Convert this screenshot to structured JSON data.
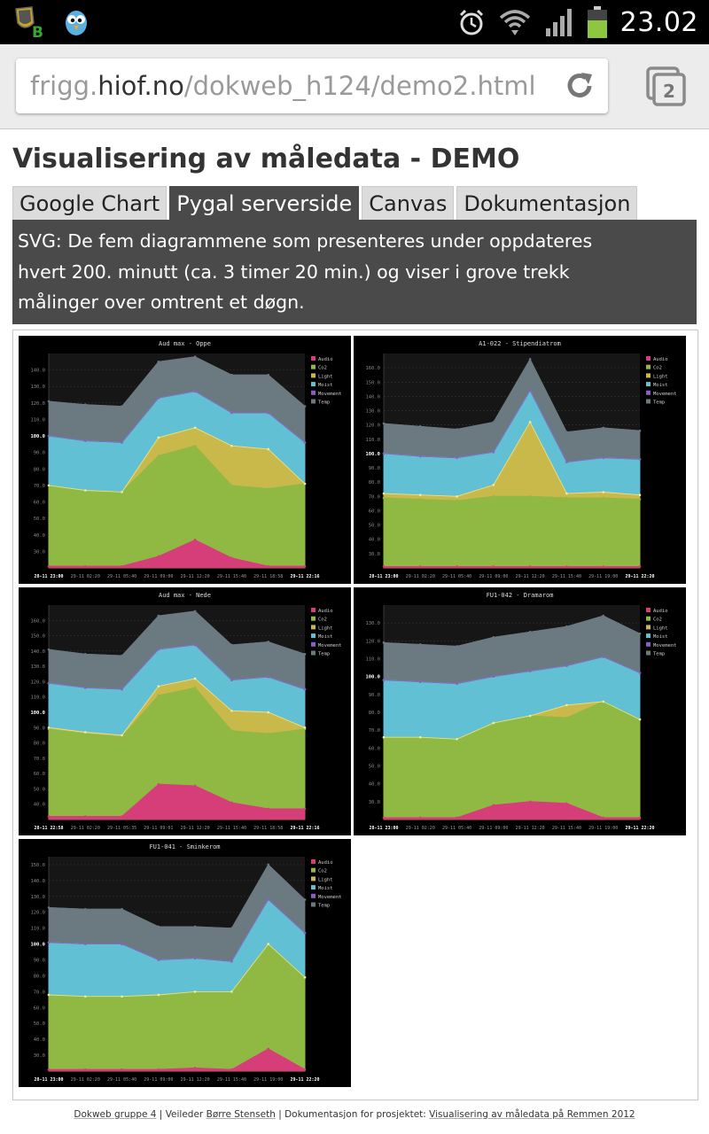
{
  "status_bar": {
    "time": "23.02",
    "icons": [
      "vb-app-icon",
      "bird-app-icon",
      "alarm-icon",
      "wifi-icon",
      "signal-icon",
      "battery-icon"
    ],
    "battery_color": "#8dc63f"
  },
  "browser": {
    "url_prefix": "frigg.",
    "url_host": "hiof.no",
    "url_path": "/dokweb_h124/demo2.html",
    "tab_count": "2"
  },
  "page": {
    "title": "Visualisering av måledata - DEMO",
    "tabs": [
      {
        "label": "Google Chart",
        "active": false
      },
      {
        "label": "Pygal serverside",
        "active": true
      },
      {
        "label": "Canvas",
        "active": false
      },
      {
        "label": "Dokumentasjon",
        "active": false
      }
    ],
    "info_lines": [
      "SVG: De fem diagrammene som presenteres under oppdateres",
      "hvert 200. minutt (ca. 3 timer 20 min.) og viser i grove trekk",
      "målinger over omtrent et døgn."
    ],
    "footer": {
      "prefix": "Dokweb gruppe 4",
      "advisor_label": "Veileder",
      "advisor": "Børre Stenseth",
      "doc_label": "Dokumentasjon for prosjektet:",
      "doc_link": "Visualisering av måledata på Remmen 2012"
    }
  },
  "colors": {
    "Audio": "#d63e7a",
    "Co2": "#90b944",
    "Light": "#c9b84a",
    "Moist": "#62c0d4",
    "Movement": "#8a5cc4",
    "Temp": "#6b7a80"
  },
  "chart_data": [
    {
      "type": "area",
      "stacked": true,
      "title": "Aud max - Oppe",
      "legend": [
        "Audio",
        "Co2",
        "Light",
        "Moist",
        "Movement",
        "Temp"
      ],
      "legend_position": "right",
      "x": [
        "28-11 23:00",
        "29-11 02:20",
        "29-11 05:40",
        "29-11 09:00",
        "29-11 12:20",
        "29-11 15:40",
        "29-11 18:58",
        "29-11 22:16"
      ],
      "ylim": [
        20,
        150
      ],
      "yticks": [
        "30.0",
        "40.0",
        "50.0",
        "60.0",
        "70.0",
        "80.0",
        "90.0",
        "100.0",
        "110.0",
        "120.0",
        "130.0",
        "140.0"
      ],
      "major_yticks": [
        "100.0"
      ],
      "stacked_totals": {
        "Audio": [
          21,
          21,
          21,
          27,
          37,
          26,
          21,
          21
        ],
        "Co2": [
          70,
          67,
          66,
          88,
          94,
          70,
          68,
          71
        ],
        "Light": [
          70,
          67,
          66,
          99,
          105,
          94,
          92,
          71
        ],
        "Moist": [
          100,
          97,
          96,
          123,
          127,
          114,
          114,
          96
        ],
        "Movement": [
          100,
          97,
          96,
          123,
          127,
          114,
          114,
          96
        ],
        "Temp": [
          121,
          119,
          118,
          145,
          148,
          137,
          137,
          118
        ]
      }
    },
    {
      "type": "area",
      "stacked": true,
      "title": "A1-022 - Stipendiatrom",
      "legend": [
        "Audio",
        "Co2",
        "Light",
        "Moist",
        "Movement",
        "Temp"
      ],
      "legend_position": "right",
      "x": [
        "28-11 23:00",
        "29-11 02:20",
        "29-11 05:40",
        "29-11 09:00",
        "29-11 12:20",
        "29-11 15:40",
        "29-11 19:00",
        "29-11 22:20"
      ],
      "ylim": [
        20,
        170
      ],
      "yticks": [
        "30.0",
        "40.0",
        "50.0",
        "60.0",
        "70.0",
        "80.0",
        "90.0",
        "100.0",
        "110.0",
        "120.0",
        "130.0",
        "140.0",
        "150.0",
        "160.0"
      ],
      "major_yticks": [
        "100.0"
      ],
      "stacked_totals": {
        "Audio": [
          21,
          21,
          21,
          21,
          21,
          21,
          21,
          21
        ],
        "Co2": [
          69,
          68,
          67,
          70,
          70,
          69,
          69,
          68
        ],
        "Light": [
          72,
          71,
          70,
          78,
          122,
          72,
          73,
          71
        ],
        "Moist": [
          100,
          98,
          97,
          101,
          144,
          94,
          97,
          96
        ],
        "Movement": [
          100,
          98,
          97,
          101,
          144,
          94,
          97,
          96
        ],
        "Temp": [
          121,
          119,
          117,
          122,
          166,
          115,
          118,
          116
        ]
      }
    },
    {
      "type": "area",
      "stacked": true,
      "title": "Aud max - Nede",
      "legend": [
        "Audio",
        "Co2",
        "Light",
        "Moist",
        "Movement",
        "Temp"
      ],
      "legend_position": "right",
      "x": [
        "28-11 22:58",
        "29-11 02:20",
        "29-11 05:35",
        "29-11 09:01",
        "29-11 12:20",
        "29-11 15:40",
        "29-11 18:58",
        "29-11 22:16"
      ],
      "ylim": [
        30,
        170
      ],
      "yticks": [
        "40.0",
        "50.0",
        "60.0",
        "70.0",
        "80.0",
        "90.0",
        "100.0",
        "110.0",
        "120.0",
        "130.0",
        "140.0",
        "150.0",
        "160.0"
      ],
      "major_yticks": [
        "100.0"
      ],
      "stacked_totals": {
        "Audio": [
          32,
          32,
          32,
          53,
          52,
          41,
          37,
          37
        ],
        "Co2": [
          89,
          86,
          84,
          111,
          116,
          88,
          86,
          89
        ],
        "Light": [
          90,
          87,
          85,
          117,
          122,
          101,
          100,
          90
        ],
        "Moist": [
          119,
          116,
          115,
          141,
          144,
          121,
          123,
          115
        ],
        "Movement": [
          119,
          116,
          115,
          141,
          144,
          121,
          123,
          115
        ],
        "Temp": [
          141,
          138,
          137,
          163,
          166,
          144,
          146,
          138
        ]
      }
    },
    {
      "type": "area",
      "stacked": true,
      "title": "FU1-042 - Dramarom",
      "legend": [
        "Audio",
        "Co2",
        "Light",
        "Moist",
        "Movement",
        "Temp"
      ],
      "legend_position": "right",
      "x": [
        "28-11 23:00",
        "29-11 02:20",
        "29-11 05:40",
        "29-11 09:00",
        "29-11 12:20",
        "29-11 15:40",
        "29-11 19:00",
        "29-11 22:20"
      ],
      "ylim": [
        20,
        140
      ],
      "yticks": [
        "30.0",
        "40.0",
        "50.0",
        "60.0",
        "70.0",
        "80.0",
        "90.0",
        "100.0",
        "110.0",
        "120.0",
        "130.0"
      ],
      "major_yticks": [
        "100.0"
      ],
      "stacked_totals": {
        "Audio": [
          21,
          21,
          21,
          28,
          30,
          29,
          21,
          21
        ],
        "Co2": [
          66,
          66,
          65,
          74,
          78,
          77,
          86,
          76
        ],
        "Light": [
          66,
          66,
          65,
          74,
          78,
          84,
          86,
          76
        ],
        "Moist": [
          98,
          97,
          96,
          100,
          103,
          106,
          111,
          102
        ],
        "Movement": [
          98,
          97,
          96,
          100,
          103,
          106,
          111,
          102
        ],
        "Temp": [
          119,
          118,
          117,
          122,
          125,
          128,
          134,
          124
        ]
      }
    },
    {
      "type": "area",
      "stacked": true,
      "title": "FU1-041 - Sminkerom",
      "legend": [
        "Audio",
        "Co2",
        "Light",
        "Moist",
        "Movement",
        "Temp"
      ],
      "legend_position": "right",
      "x": [
        "28-11 23:00",
        "29-11 02:20",
        "29-11 05:40",
        "29-11 09:00",
        "29-11 12:20",
        "29-11 15:40",
        "29-11 19:00",
        "29-11 22:20"
      ],
      "ylim": [
        20,
        155
      ],
      "yticks": [
        "30.0",
        "40.0",
        "50.0",
        "60.0",
        "70.0",
        "80.0",
        "90.0",
        "100.0",
        "110.0",
        "120.0",
        "130.0",
        "140.0",
        "150.0"
      ],
      "major_yticks": [
        "100.0"
      ],
      "stacked_totals": {
        "Audio": [
          21,
          21,
          21,
          21,
          22,
          21,
          34,
          21
        ],
        "Co2": [
          68,
          67,
          67,
          68,
          70,
          70,
          100,
          79
        ],
        "Light": [
          68,
          67,
          67,
          68,
          70,
          70,
          100,
          79
        ],
        "Moist": [
          101,
          100,
          100,
          90,
          91,
          89,
          128,
          107
        ],
        "Movement": [
          101,
          100,
          100,
          90,
          91,
          89,
          128,
          107
        ],
        "Temp": [
          123,
          122,
          122,
          111,
          111,
          110,
          150,
          128
        ]
      }
    }
  ]
}
